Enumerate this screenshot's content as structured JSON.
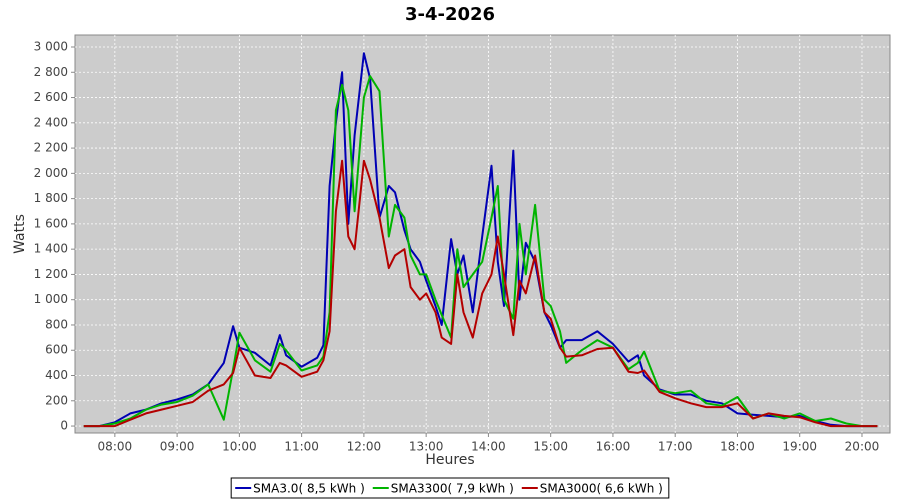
{
  "chart_data": {
    "type": "line",
    "title": "3-4-2026",
    "x_label": "Heures",
    "y_label": "Watts",
    "x": [
      7.5,
      7.75,
      8,
      8.25,
      8.5,
      8.75,
      9,
      9.25,
      9.5,
      9.75,
      9.9,
      10,
      10.25,
      10.5,
      10.65,
      10.75,
      11,
      11.25,
      11.35,
      11.45,
      11.55,
      11.65,
      11.75,
      11.85,
      12,
      12.1,
      12.25,
      12.4,
      12.5,
      12.65,
      12.75,
      12.9,
      13,
      13.15,
      13.25,
      13.4,
      13.5,
      13.6,
      13.75,
      13.9,
      14.05,
      14.15,
      14.25,
      14.4,
      14.5,
      14.6,
      14.75,
      14.9,
      15,
      15.15,
      15.25,
      15.5,
      15.75,
      16,
      16.25,
      16.4,
      16.5,
      16.75,
      17,
      17.25,
      17.5,
      17.75,
      18,
      18.25,
      18.5,
      18.75,
      19,
      19.25,
      19.5,
      19.75,
      20,
      20.25
    ],
    "series": [
      {
        "name": "SMA3.0( 8,5 kWh )",
        "color": "#0000b4",
        "values": [
          0,
          0,
          30,
          100,
          130,
          180,
          210,
          250,
          330,
          500,
          790,
          620,
          580,
          480,
          720,
          560,
          470,
          540,
          640,
          1900,
          2400,
          2800,
          1600,
          2300,
          2950,
          2750,
          1650,
          1900,
          1850,
          1550,
          1400,
          1300,
          1150,
          950,
          800,
          1480,
          1200,
          1350,
          900,
          1500,
          2060,
          1300,
          950,
          2180,
          1000,
          1450,
          1300,
          900,
          800,
          620,
          680,
          680,
          750,
          650,
          510,
          560,
          400,
          290,
          250,
          250,
          200,
          180,
          100,
          90,
          80,
          70,
          80,
          40,
          10,
          0,
          0,
          0
        ]
      },
      {
        "name": "SMA3300( 7,9 kWh )",
        "color": "#00b400",
        "values": [
          0,
          0,
          20,
          60,
          130,
          170,
          190,
          240,
          330,
          50,
          450,
          740,
          520,
          430,
          650,
          600,
          440,
          480,
          550,
          900,
          2500,
          2700,
          2500,
          1700,
          2600,
          2770,
          2650,
          1500,
          1750,
          1650,
          1350,
          1200,
          1200,
          1000,
          880,
          700,
          1400,
          1100,
          1200,
          1300,
          1650,
          1900,
          1000,
          850,
          1600,
          1200,
          1750,
          1000,
          950,
          750,
          500,
          600,
          680,
          620,
          450,
          500,
          590,
          280,
          260,
          280,
          180,
          160,
          230,
          60,
          100,
          60,
          100,
          40,
          60,
          20,
          0,
          0
        ]
      },
      {
        "name": "SMA3000( 6,6 kWh )",
        "color": "#b40000",
        "values": [
          0,
          0,
          0,
          50,
          100,
          130,
          160,
          190,
          280,
          330,
          420,
          620,
          400,
          380,
          500,
          480,
          390,
          430,
          520,
          750,
          1700,
          2100,
          1500,
          1400,
          2100,
          1950,
          1650,
          1250,
          1350,
          1400,
          1100,
          1000,
          1050,
          900,
          700,
          650,
          1200,
          900,
          700,
          1050,
          1200,
          1500,
          1200,
          720,
          1150,
          1050,
          1350,
          900,
          850,
          620,
          550,
          560,
          610,
          620,
          430,
          420,
          440,
          270,
          220,
          180,
          150,
          150,
          180,
          60,
          100,
          80,
          70,
          30,
          0,
          0,
          0,
          0
        ]
      }
    ],
    "xlim": [
      7.36,
      20.45
    ],
    "xticks": [
      {
        "value": 8,
        "label": "08:00"
      },
      {
        "value": 9,
        "label": "09:00"
      },
      {
        "value": 10,
        "label": "10:00"
      },
      {
        "value": 11,
        "label": "11:00"
      },
      {
        "value": 12,
        "label": "12:00"
      },
      {
        "value": 13,
        "label": "13:00"
      },
      {
        "value": 14,
        "label": "14:00"
      },
      {
        "value": 15,
        "label": "15:00"
      },
      {
        "value": 16,
        "label": "16:00"
      },
      {
        "value": 17,
        "label": "17:00"
      },
      {
        "value": 18,
        "label": "18:00"
      },
      {
        "value": 19,
        "label": "19:00"
      },
      {
        "value": 20,
        "label": "20:00"
      }
    ],
    "ylim": [
      -55,
      3095
    ],
    "yticks": [
      0,
      200,
      400,
      600,
      800,
      {
        "value": 1000,
        "label": "1 000"
      },
      {
        "value": 1200,
        "label": "1 200"
      },
      {
        "value": 1400,
        "label": "1 400"
      },
      {
        "value": 1600,
        "label": "1 600"
      },
      {
        "value": 1800,
        "label": "1 800"
      },
      {
        "value": 2000,
        "label": "2 000"
      },
      {
        "value": 2200,
        "label": "2 200"
      },
      {
        "value": 2400,
        "label": "2 400"
      },
      {
        "value": 2600,
        "label": "2 600"
      },
      {
        "value": 2800,
        "label": "2 800"
      },
      {
        "value": 3000,
        "label": "3 000"
      }
    ],
    "grid": true,
    "plot_background": "#cccccc",
    "legend": "bottom"
  }
}
